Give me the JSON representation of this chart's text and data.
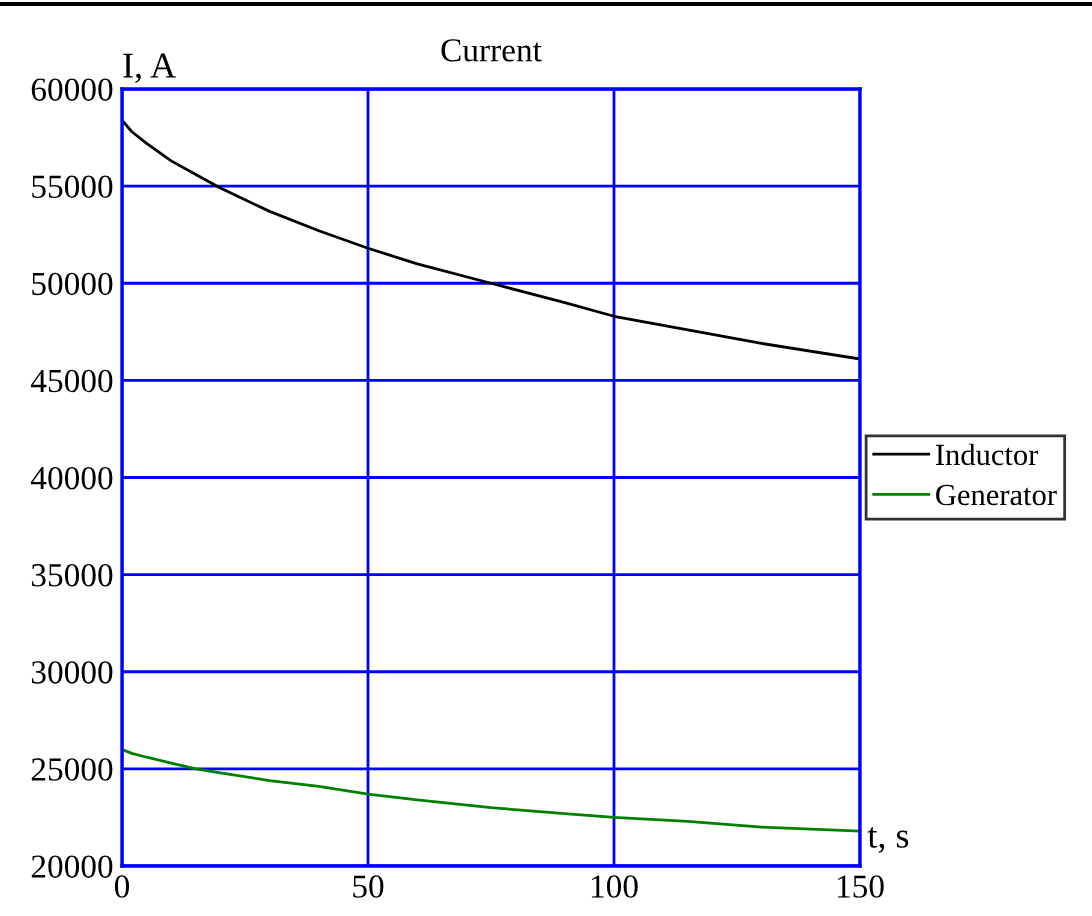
{
  "chart_data": {
    "type": "line",
    "title": "Current",
    "xlabel": "t, s",
    "ylabel": "I, A",
    "xlim": [
      0,
      150
    ],
    "xticks": [
      0,
      50,
      100,
      150
    ],
    "ylim": [
      20000,
      60000
    ],
    "yticks": [
      20000,
      25000,
      30000,
      35000,
      40000,
      45000,
      50000,
      55000,
      60000
    ],
    "grid": true,
    "legend": "right",
    "marker": "none",
    "line_style": "solid",
    "series": [
      {
        "name": "Inductor",
        "color": "#000000",
        "x": [
          0,
          2,
          5,
          10,
          15,
          20,
          30,
          40,
          50,
          60,
          75,
          90,
          100,
          115,
          130,
          150
        ],
        "values": [
          58400,
          57800,
          57200,
          56300,
          55600,
          54900,
          53700,
          52700,
          51800,
          51000,
          50000,
          49000,
          48300,
          47600,
          46900,
          46100
        ]
      },
      {
        "name": "Generator",
        "color": "#008000",
        "x": [
          0,
          2,
          5,
          10,
          15,
          20,
          30,
          40,
          50,
          60,
          75,
          90,
          100,
          115,
          130,
          150
        ],
        "values": [
          26000,
          25800,
          25600,
          25300,
          25000,
          24800,
          24400,
          24100,
          23700,
          23400,
          23000,
          22700,
          22500,
          22300,
          22000,
          21800
        ]
      }
    ]
  }
}
